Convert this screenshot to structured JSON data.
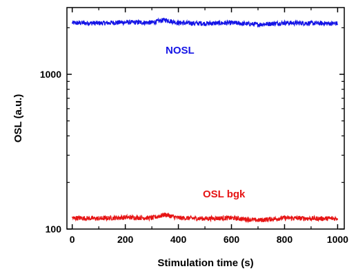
{
  "chart_data": {
    "type": "line",
    "title": "",
    "xlabel": "Stimulation time (s)",
    "ylabel": "OSL (a.u.)",
    "xlim": [
      -20,
      1025
    ],
    "ylim": [
      100,
      2700
    ],
    "yscale": "log",
    "x_ticks": [
      0,
      200,
      400,
      600,
      800,
      1000
    ],
    "x_tick_labels": [
      "0",
      "200",
      "400",
      "600",
      "800",
      "1000"
    ],
    "y_ticks": [
      100,
      1000
    ],
    "y_tick_labels": [
      "100",
      "1000"
    ],
    "grid": false,
    "series": [
      {
        "name": "NOSL",
        "color": "#1414e6",
        "x_start": 0,
        "x_end": 1000,
        "level": 2150,
        "noise_fraction": 0.035,
        "x": [
          0,
          100,
          200,
          300,
          350,
          400,
          500,
          600,
          700,
          800,
          900,
          1000
        ],
        "y": [
          2150,
          2140,
          2170,
          2160,
          2250,
          2150,
          2130,
          2150,
          2100,
          2150,
          2140,
          2130
        ]
      },
      {
        "name": "OSL bgk",
        "color": "#e61414",
        "x_start": 0,
        "x_end": 1000,
        "level": 118,
        "noise_fraction": 0.035,
        "x": [
          0,
          100,
          200,
          300,
          350,
          400,
          500,
          600,
          700,
          800,
          900,
          1000
        ],
        "y": [
          118,
          117,
          119,
          118,
          124,
          118,
          117,
          118,
          114,
          118,
          117,
          117
        ]
      }
    ]
  }
}
